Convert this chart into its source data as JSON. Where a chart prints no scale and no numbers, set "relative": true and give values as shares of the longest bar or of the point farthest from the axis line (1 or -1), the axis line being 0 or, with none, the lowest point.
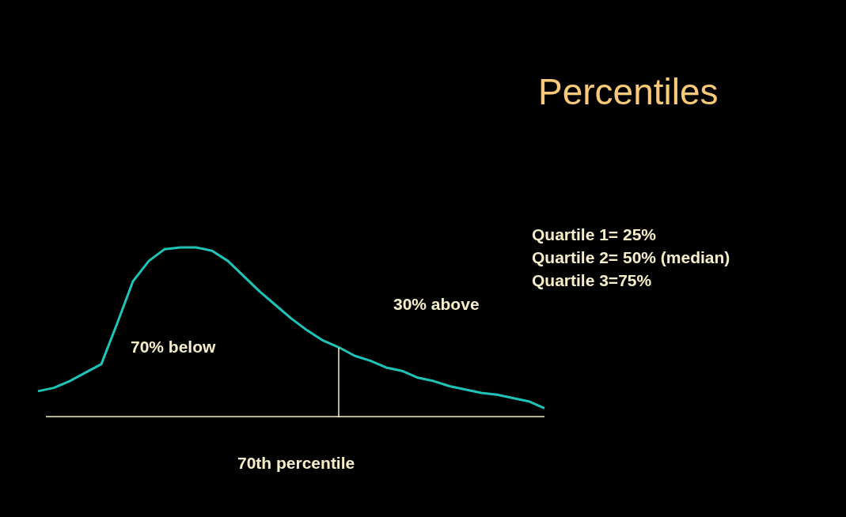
{
  "chart_data": {
    "type": "line",
    "title": "Percentiles",
    "relative": true,
    "categories": [
      null,
      null,
      null,
      null,
      null,
      null,
      null,
      null,
      null,
      null,
      null,
      null,
      null,
      null,
      null,
      null,
      null,
      null,
      null,
      null,
      null,
      null,
      null,
      null,
      null,
      null,
      null,
      null,
      null,
      null,
      null,
      null,
      null
    ],
    "series": [
      {
        "color": "#1fc4b8",
        "values": [
          0.15,
          0.17,
          0.21,
          0.26,
          0.31,
          0.55,
          0.8,
          0.92,
          0.99,
          1.0,
          1.0,
          0.98,
          0.92,
          0.83,
          0.74,
          0.66,
          0.58,
          0.51,
          0.45,
          0.41,
          0.36,
          0.33,
          0.29,
          0.27,
          0.23,
          0.21,
          0.18,
          0.16,
          0.14,
          0.13,
          0.11,
          0.09,
          0.05
        ]
      }
    ],
    "annotations": [
      "Quartile 1= 25%",
      "Quartile 2= 50% (median)",
      "Quartile 3=75%",
      "30% above",
      "70% below",
      "70th percentile"
    ]
  }
}
